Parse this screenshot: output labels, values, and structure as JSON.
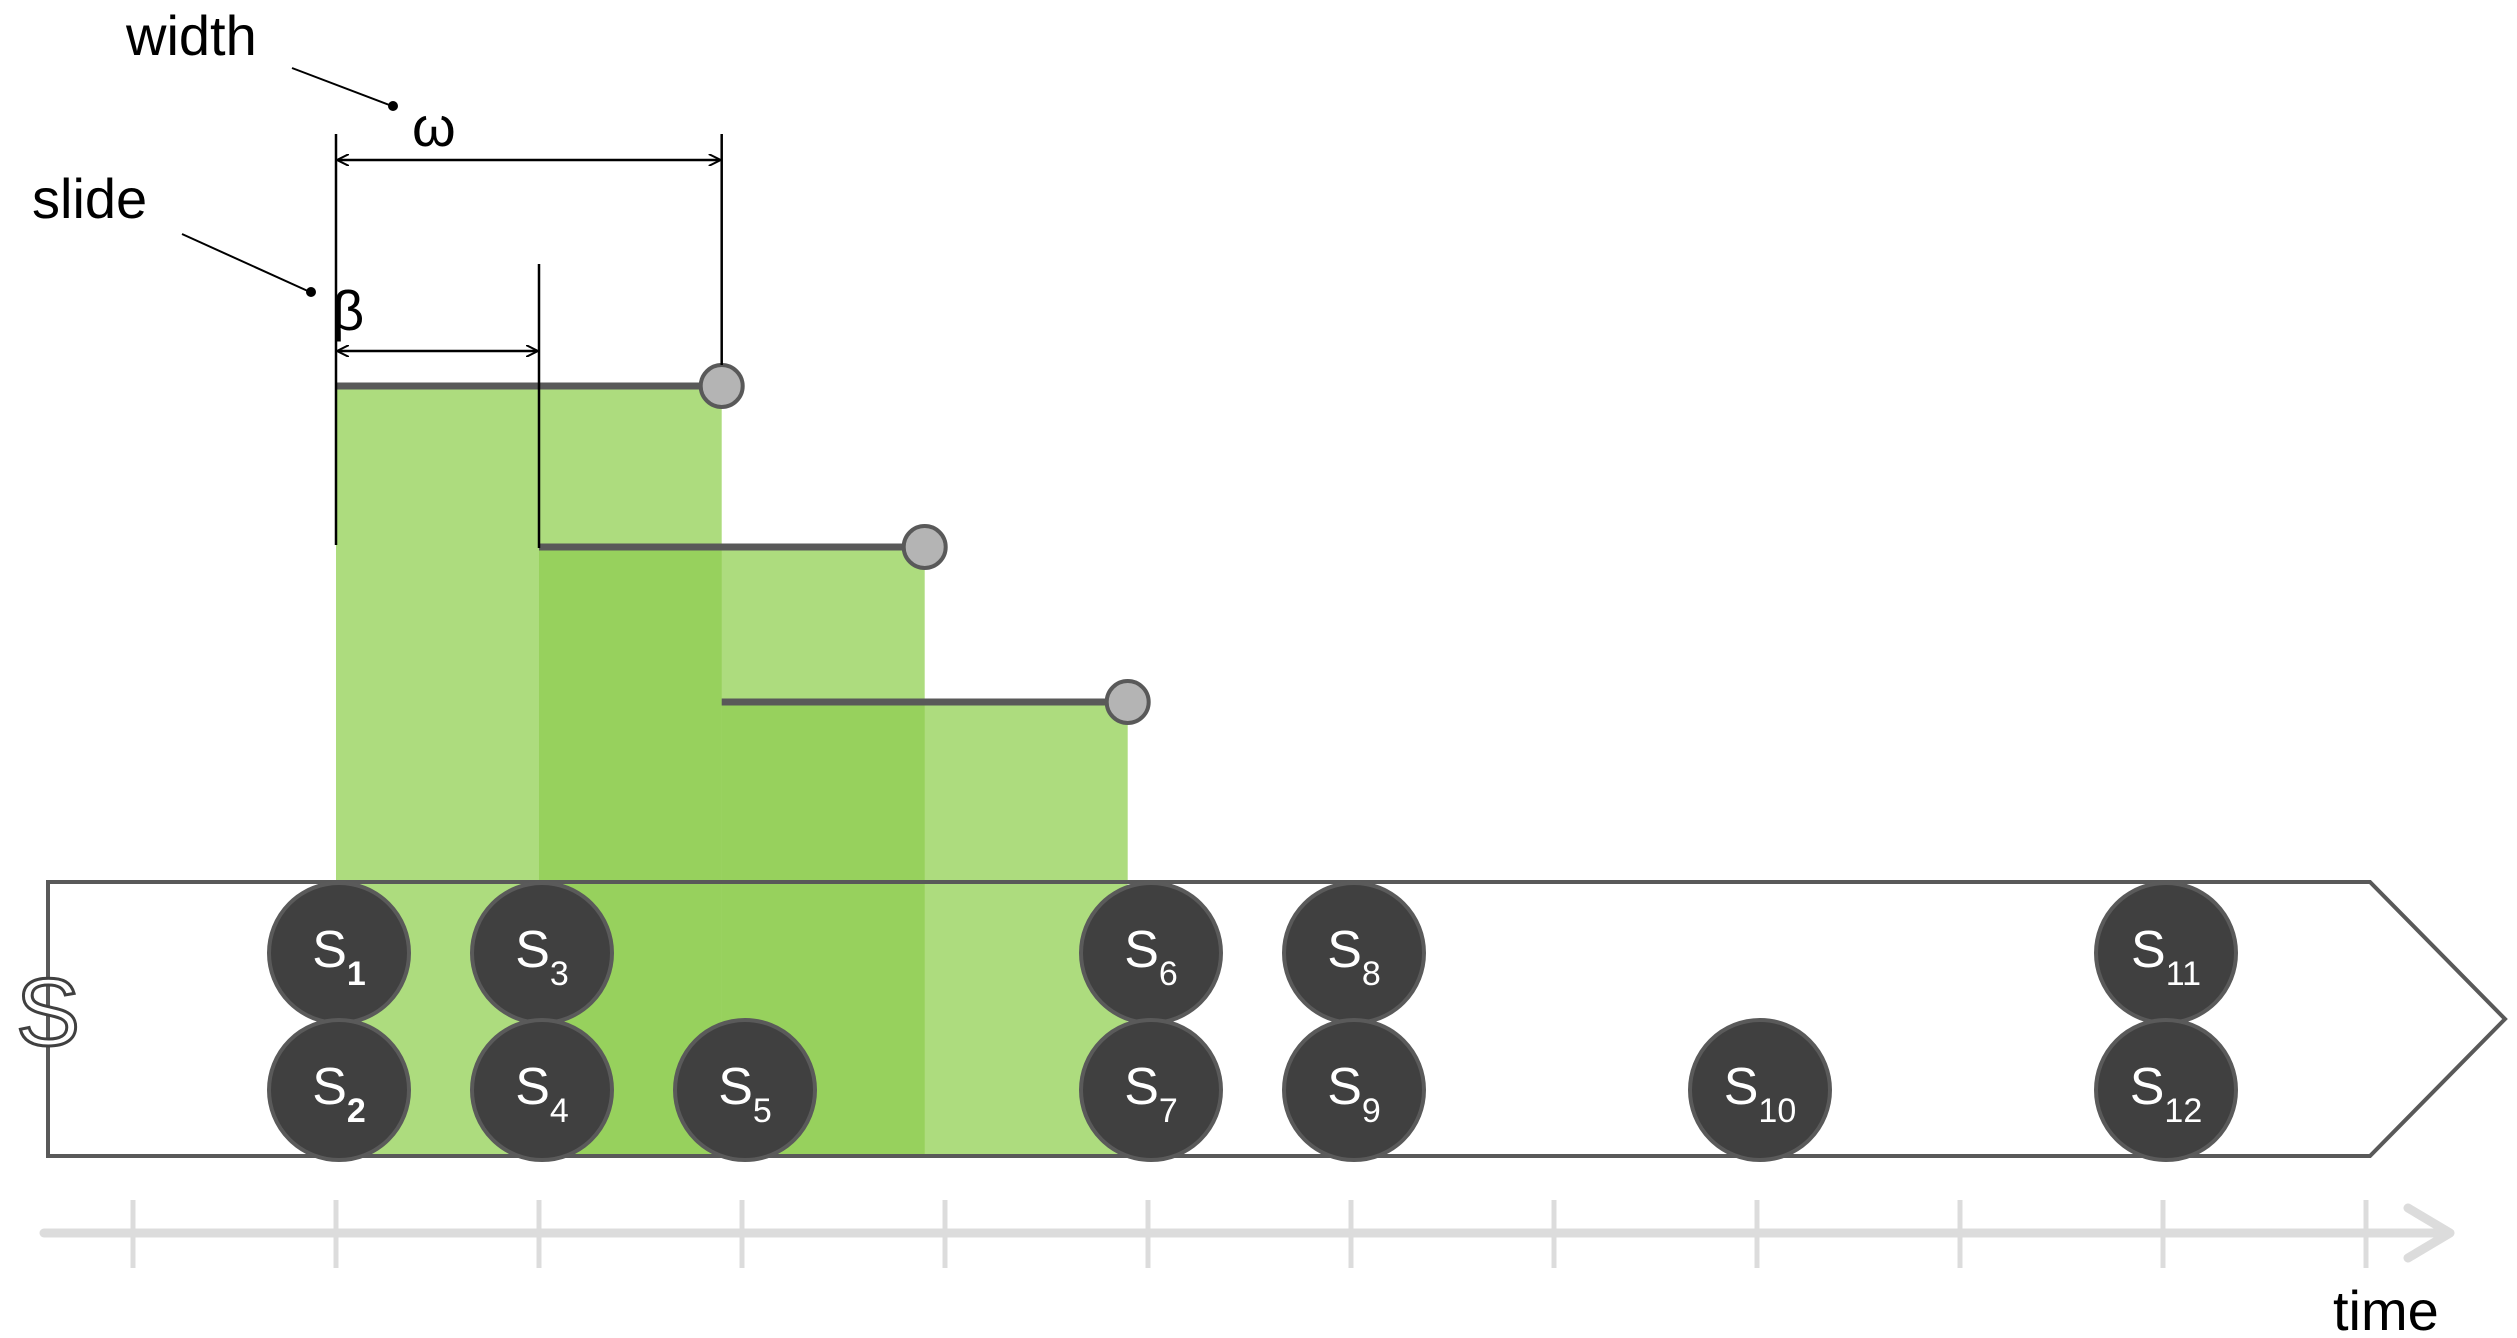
{
  "annotations": {
    "width_label": "width",
    "width_symbol": "ω",
    "slide_label": "slide",
    "slide_symbol": "β"
  },
  "stream": {
    "label": "S",
    "elements": [
      {
        "base": "S",
        "sub": "1",
        "tick": 1,
        "row": "top",
        "sub_bold": true
      },
      {
        "base": "S",
        "sub": "2",
        "tick": 1,
        "row": "bottom",
        "sub_bold": true
      },
      {
        "base": "S",
        "sub": "3",
        "tick": 2,
        "row": "top",
        "sub_bold": false
      },
      {
        "base": "S",
        "sub": "4",
        "tick": 2,
        "row": "bottom",
        "sub_bold": false
      },
      {
        "base": "S",
        "sub": "5",
        "tick": 3,
        "row": "bottom",
        "sub_bold": false
      },
      {
        "base": "S",
        "sub": "6",
        "tick": 5,
        "row": "top",
        "sub_bold": false
      },
      {
        "base": "S",
        "sub": "7",
        "tick": 5,
        "row": "bottom",
        "sub_bold": false
      },
      {
        "base": "S",
        "sub": "8",
        "tick": 6,
        "row": "top",
        "sub_bold": false
      },
      {
        "base": "S",
        "sub": "9",
        "tick": 6,
        "row": "bottom",
        "sub_bold": false
      },
      {
        "base": "S",
        "sub": "10",
        "tick": 8,
        "row": "bottom",
        "sub_bold": false
      },
      {
        "base": "S",
        "sub": "11",
        "tick": 10,
        "row": "top",
        "sub_bold": false
      },
      {
        "base": "S",
        "sub": "12",
        "tick": 10,
        "row": "bottom",
        "sub_bold": false
      }
    ]
  },
  "windows": [
    {
      "start_tick": 1,
      "end_tick": 2.9
    },
    {
      "start_tick": 2,
      "end_tick": 3.9
    },
    {
      "start_tick": 2.9,
      "end_tick": 4.9
    }
  ],
  "axis": {
    "label": "time",
    "tick_count": 12
  },
  "colors": {
    "window_light": "#addc7e",
    "window_overlap": "#97d15d",
    "node_fill": "#404040",
    "node_stroke": "#5a5a5a",
    "window_line": "#595959",
    "endpoint_fill": "#b4b4b4",
    "axis": "#dcdcdc",
    "stream_border": "#595959"
  }
}
